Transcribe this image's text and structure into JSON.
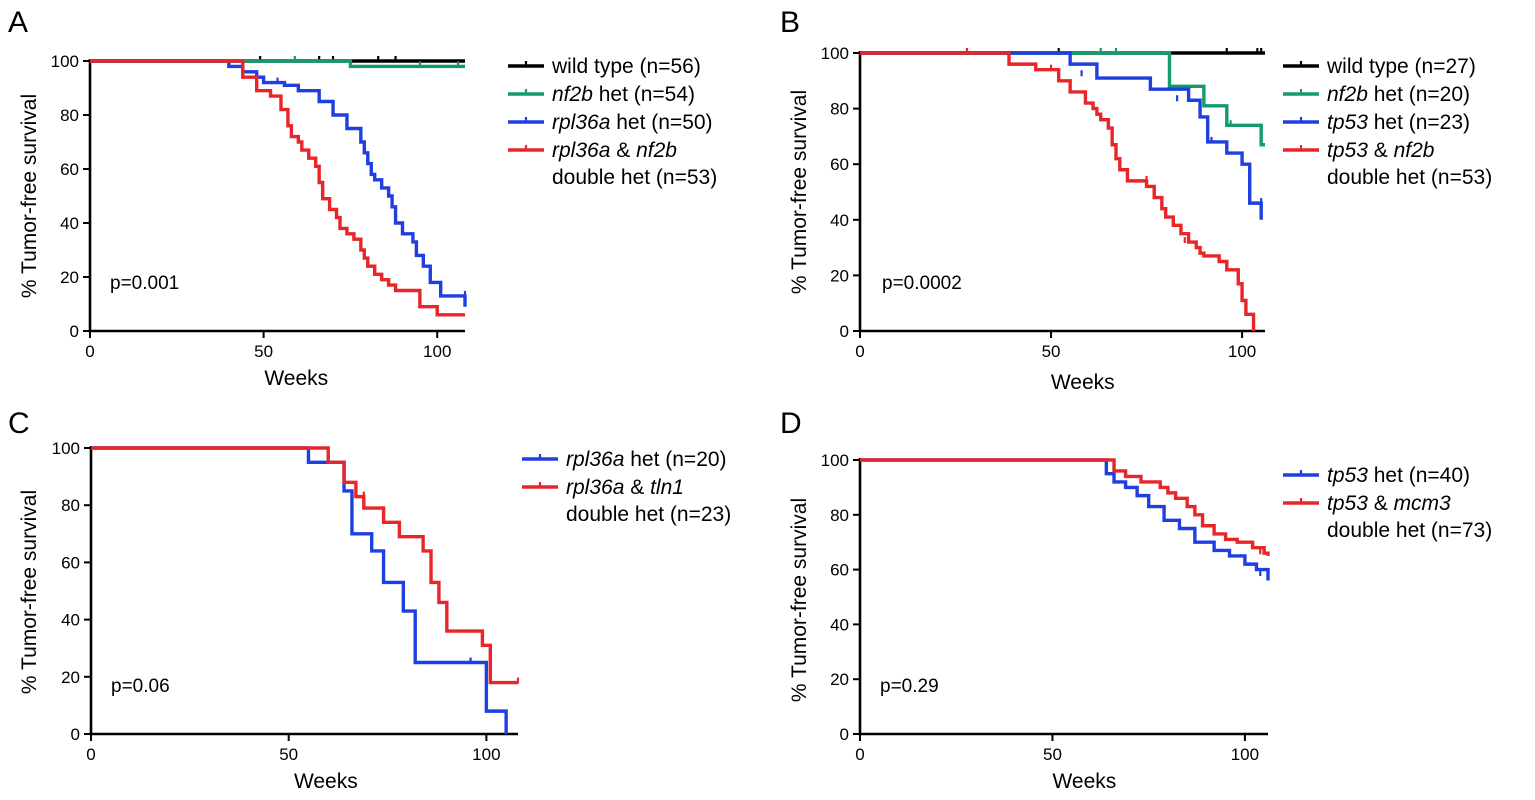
{
  "chart_data": [
    {
      "panel": "A",
      "type": "line",
      "xlabel": "Weeks",
      "ylabel": "% Tumor-free survival",
      "xlim": [
        0,
        108
      ],
      "ylim": [
        0,
        100
      ],
      "xticks": [
        0,
        50,
        100
      ],
      "yticks": [
        0,
        20,
        40,
        60,
        80,
        100
      ],
      "annotation": "p=0.001",
      "grid": false,
      "legend_position": "top-right outside",
      "series": [
        {
          "legend": [
            {
              "text": "wild type (n=56)",
              "italic": false
            }
          ],
          "color": "#000000",
          "x": [
            0,
            108
          ],
          "y": [
            100,
            100
          ],
          "censor": [
            [
              49,
              100
            ],
            [
              66,
              100
            ],
            [
              70,
              100
            ],
            [
              83,
              100
            ],
            [
              88,
              100
            ]
          ]
        },
        {
          "legend": [
            {
              "text": "nf2b",
              "italic": true
            },
            {
              "text": " het (n=54)",
              "italic": false
            }
          ],
          "color": "#159a6b",
          "x": [
            0,
            75,
            108
          ],
          "y": [
            100,
            98,
            98
          ],
          "censor": [
            [
              59,
              100
            ],
            [
              95,
              98
            ],
            [
              106,
              98
            ]
          ]
        },
        {
          "legend": [
            {
              "text": "rpl36a",
              "italic": true
            },
            {
              "text": " het (n=50)",
              "italic": false
            }
          ],
          "color": "#1f3fe0",
          "x": [
            0,
            36,
            40,
            44,
            48,
            50,
            52,
            56,
            60,
            66,
            70,
            74,
            78,
            79,
            80,
            81,
            82,
            84,
            86,
            87,
            88,
            90,
            93,
            94,
            96,
            98,
            101,
            108
          ],
          "y": [
            100,
            100,
            98,
            96,
            94,
            92,
            92,
            91,
            89,
            85,
            80,
            75,
            70,
            66,
            62,
            58,
            56,
            53,
            50,
            46,
            40,
            36,
            33,
            28,
            24,
            18,
            13,
            9
          ],
          "censor": [
            [
              54,
              92
            ],
            [
              90,
              36
            ],
            [
              108,
              13
            ]
          ]
        },
        {
          "legend": [
            {
              "text": "rpl36a",
              "italic": true
            },
            {
              "text": " & ",
              "italic": false
            },
            {
              "text": "nf2b",
              "italic": true
            }
          ],
          "legend_line2": "double het (n=53)",
          "color": "#e8262a",
          "x": [
            0,
            36,
            44,
            48,
            52,
            55,
            57,
            58,
            60,
            61,
            63,
            65,
            66,
            67,
            69,
            71,
            72,
            74,
            76,
            78,
            79,
            80,
            82,
            84,
            86,
            88,
            90,
            95,
            100,
            108
          ],
          "y": [
            100,
            100,
            94,
            89,
            87,
            82,
            76,
            72,
            70,
            67,
            64,
            61,
            55,
            49,
            45,
            42,
            38,
            36,
            34,
            30,
            27,
            24,
            21,
            19,
            17,
            15,
            15,
            9,
            6,
            6
          ],
          "censor": []
        }
      ]
    },
    {
      "panel": "B",
      "type": "line",
      "xlabel": "Weeks",
      "ylabel": "% Tumor-free survival",
      "xlim": [
        0,
        106
      ],
      "ylim": [
        0,
        100
      ],
      "xticks": [
        0,
        50,
        100
      ],
      "yticks": [
        0,
        20,
        40,
        60,
        80,
        100
      ],
      "annotation": "p=0.0002",
      "grid": false,
      "legend_position": "top-right outside",
      "series": [
        {
          "legend": [
            {
              "text": "wild type (n=27)",
              "italic": false
            }
          ],
          "color": "#000000",
          "x": [
            0,
            106
          ],
          "y": [
            100,
            100
          ],
          "censor": [
            [
              52,
              100
            ],
            [
              96,
              100
            ],
            [
              104,
              100
            ],
            [
              105,
              100
            ]
          ]
        },
        {
          "legend": [
            {
              "text": "nf2b",
              "italic": true
            },
            {
              "text": " het (n=20)",
              "italic": false
            }
          ],
          "color": "#159a6b",
          "x": [
            0,
            79,
            81,
            90,
            96,
            101,
            105,
            106
          ],
          "y": [
            100,
            100,
            88,
            81,
            74,
            74,
            67,
            67
          ],
          "censor": [
            [
              63,
              100
            ],
            [
              67,
              100
            ],
            [
              97,
              74
            ]
          ]
        },
        {
          "legend": [
            {
              "text": "tp53",
              "italic": true
            },
            {
              "text": " het (n=23)",
              "italic": false
            }
          ],
          "color": "#1f3fe0",
          "x": [
            0,
            52,
            55,
            62,
            70,
            76,
            86,
            89,
            91,
            96,
            100,
            102,
            105
          ],
          "y": [
            100,
            100,
            96,
            91,
            91,
            87,
            83,
            77,
            68,
            64,
            60,
            46,
            40
          ],
          "censor": [
            [
              58,
              92
            ],
            [
              83,
              83
            ],
            [
              92,
              68
            ],
            [
              105,
              46
            ]
          ]
        },
        {
          "legend": [
            {
              "text": "tp53",
              "italic": true
            },
            {
              "text": " & ",
              "italic": false
            },
            {
              "text": "nf2b",
              "italic": true
            }
          ],
          "legend_line2": "double het (n=53)",
          "color": "#e8262a",
          "x": [
            0,
            37,
            39,
            46,
            49,
            52,
            55,
            59,
            61,
            62,
            63,
            65,
            66,
            67,
            68,
            70,
            72,
            75,
            77,
            79,
            80,
            82,
            84,
            86,
            88,
            89,
            90,
            92,
            94,
            96,
            99,
            100,
            101,
            103
          ],
          "y": [
            100,
            100,
            96,
            94,
            94,
            90,
            86,
            82,
            80,
            78,
            76,
            73,
            67,
            62,
            58,
            54,
            54,
            52,
            48,
            44,
            41,
            38,
            35,
            32,
            30,
            28,
            27,
            27,
            25,
            22,
            17,
            11,
            6,
            0
          ],
          "censor": [
            [
              28,
              100
            ],
            [
              50,
              94
            ],
            [
              75,
              54
            ],
            [
              85,
              32
            ]
          ]
        }
      ]
    },
    {
      "panel": "C",
      "type": "line",
      "xlabel": "Weeks",
      "ylabel": "% Tumor-free survival",
      "xlim": [
        0,
        108
      ],
      "ylim": [
        0,
        100
      ],
      "xticks": [
        0,
        50,
        100
      ],
      "yticks": [
        0,
        20,
        40,
        60,
        80,
        100
      ],
      "annotation": "p=0.06",
      "grid": false,
      "legend_position": "top-right outside",
      "series": [
        {
          "legend": [
            {
              "text": "rpl36a",
              "italic": true
            },
            {
              "text": " het (n=20)",
              "italic": false
            }
          ],
          "color": "#1f3fe0",
          "x": [
            0,
            53,
            55,
            64,
            66,
            71,
            74,
            79,
            82,
            96,
            100,
            105
          ],
          "y": [
            100,
            100,
            95,
            85,
            70,
            64,
            53,
            43,
            25,
            25,
            8,
            0
          ],
          "censor": [
            [
              96,
              25
            ]
          ]
        },
        {
          "legend": [
            {
              "text": "rpl36a",
              "italic": true
            },
            {
              "text": " & ",
              "italic": false
            },
            {
              "text": "tln1",
              "italic": true
            }
          ],
          "legend_line2": "double het (n=23)",
          "color": "#e8262a",
          "x": [
            0,
            55,
            60,
            64,
            67,
            69,
            74,
            78,
            84,
            86,
            88,
            90,
            99,
            101,
            108
          ],
          "y": [
            100,
            100,
            95,
            88,
            83,
            79,
            74,
            69,
            64,
            53,
            46,
            36,
            31,
            18,
            18
          ],
          "censor": [
            [
              69,
              83
            ],
            [
              108,
              18
            ]
          ]
        }
      ]
    },
    {
      "panel": "D",
      "type": "line",
      "xlabel": "Weeks",
      "ylabel": "% Tumor-free survival",
      "xlim": [
        0,
        106
      ],
      "ylim": [
        0,
        100
      ],
      "xticks": [
        0,
        50,
        100
      ],
      "yticks": [
        0,
        20,
        40,
        60,
        80,
        100
      ],
      "annotation": "p=0.29",
      "grid": false,
      "legend_position": "top-right outside",
      "series": [
        {
          "legend": [
            {
              "text": "tp53",
              "italic": true
            },
            {
              "text": " het (n=40)",
              "italic": false
            }
          ],
          "color": "#1f3fe0",
          "x": [
            0,
            62,
            64,
            66,
            69,
            72,
            75,
            79,
            83,
            87,
            92,
            96,
            100,
            103,
            106
          ],
          "y": [
            100,
            100,
            95,
            92,
            90,
            87,
            83,
            78,
            75,
            70,
            67,
            65,
            62,
            60,
            56
          ],
          "censor": [
            [
              96,
              65
            ],
            [
              104,
              58
            ]
          ]
        },
        {
          "legend": [
            {
              "text": "tp53",
              "italic": true
            },
            {
              "text": " & ",
              "italic": false
            },
            {
              "text": "mcm3",
              "italic": true
            }
          ],
          "legend_line2": "double het (n=73)",
          "color": "#e8262a",
          "x": [
            0,
            64,
            66,
            69,
            73,
            78,
            80,
            82,
            85,
            87,
            89,
            92,
            95,
            98,
            102,
            105,
            106
          ],
          "y": [
            100,
            100,
            96,
            94,
            92,
            90,
            88,
            86,
            83,
            80,
            76,
            73,
            71,
            70,
            68,
            66,
            65
          ],
          "censor": [
            [
              104,
              66
            ]
          ]
        }
      ]
    }
  ]
}
